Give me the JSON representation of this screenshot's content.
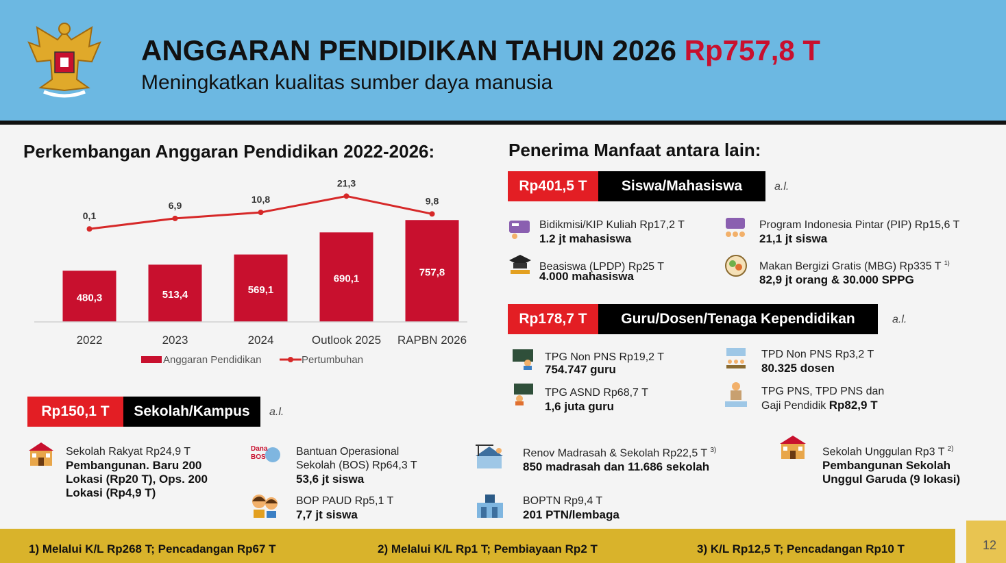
{
  "header": {
    "title_main": "ANGGARAN PENDIDIKAN TAHUN 2026",
    "title_amount": "Rp757,8 T",
    "subtitle": "Meningkatkan kualitas sumber daya manusia"
  },
  "left": {
    "section_title": "Perkembangan Anggaran Pendidikan 2022-2026:"
  },
  "chart_data": {
    "type": "bar",
    "categories": [
      "2022",
      "2023",
      "2024",
      "Outlook 2025",
      "RAPBN 2026"
    ],
    "series": [
      {
        "name": "Anggaran Pendidikan",
        "type": "bar",
        "values": [
          480.3,
          513.4,
          569.1,
          690.1,
          757.8
        ],
        "labels": [
          "480,3",
          "513,4",
          "569,1",
          "690,1",
          "757,8"
        ],
        "color": "#c8102e"
      },
      {
        "name": "Pertumbuhan",
        "type": "line",
        "values": [
          0.1,
          6.9,
          10.8,
          21.3,
          9.8
        ],
        "labels": [
          "0,1",
          "6,9",
          "10,8",
          "21,3",
          "9,8"
        ],
        "color": "#d62828"
      }
    ],
    "legend_placement": "bottom",
    "grid": false
  },
  "sekolah": {
    "amount": "Rp150,1 T",
    "label": "Sekolah/Kampus",
    "al": "a.l.",
    "items": [
      {
        "line1": "Sekolah Rakyat Rp24,9 T",
        "bold": [
          "Pembangunan. Baru  200",
          "Lokasi (Rp20 T), Ops. 200",
          "Lokasi (Rp4,9 T)"
        ]
      },
      {
        "line1": "Bantuan Operasional",
        "line2": "Sekolah (BOS) Rp64,3 T",
        "bold": [
          "53,6 jt siswa"
        ],
        "icon_text": "Dana BOS"
      },
      {
        "line1": "BOP PAUD Rp5,1 T",
        "bold": [
          "7,7 jt siswa"
        ]
      },
      {
        "line1": "Renov Madrasah & Sekolah Rp22,5 T",
        "sup": "3)",
        "bold": [
          "850 madrasah dan 11.686 sekolah"
        ]
      },
      {
        "line1": "BOPTN Rp9,4 T",
        "bold": [
          "201 PTN/lembaga"
        ]
      },
      {
        "line1": "Sekolah Unggulan Rp3 T",
        "sup": "2)",
        "bold": [
          "Pembangunan Sekolah",
          "Unggul Garuda (9 lokasi)"
        ]
      }
    ]
  },
  "right": {
    "section_title": "Penerima Manfaat antara lain:",
    "siswa": {
      "amount": "Rp401,5 T",
      "label": "Siswa/Mahasiswa",
      "al": "a.l.",
      "items": [
        {
          "line1": "Bidikmisi/KIP Kuliah Rp17,2 T",
          "bold": "1.2 jt mahasiswa"
        },
        {
          "line1": "Program Indonesia Pintar (PIP) Rp15,6 T",
          "bold": "21,1 jt siswa"
        },
        {
          "line1": "Beasiswa (LPDP) Rp25 T",
          "bold": "4.000 mahasiswa"
        },
        {
          "line1": "Makan Bergizi Gratis (MBG) Rp335 T",
          "sup": "1)",
          "bold": "82,9  jt orang & 30.000 SPPG"
        }
      ]
    },
    "guru": {
      "amount": "Rp178,7 T",
      "label": "Guru/Dosen/Tenaga Kependidikan",
      "al": "a.l.",
      "items": [
        {
          "line1": "TPG Non PNS Rp19,2 T",
          "bold": "754.747  guru"
        },
        {
          "line1": "TPD Non PNS Rp3,2 T",
          "bold": "80.325 dosen"
        },
        {
          "line1": "TPG ASND Rp68,7 T",
          "bold": "1,6 juta guru"
        },
        {
          "line1": "TPG PNS, TPD PNS dan",
          "line2_plain": "Gaji Pendidik ",
          "bold": "Rp82,9 T"
        }
      ]
    }
  },
  "footer": {
    "notes": [
      "1) Melalui K/L Rp268 T; Pencadangan Rp67 T",
      "2) Melalui K/L Rp1 T; Pembiayaan Rp2 T",
      "3) K/L Rp12,5 T; Pencadangan Rp10 T"
    ],
    "page": "12"
  }
}
